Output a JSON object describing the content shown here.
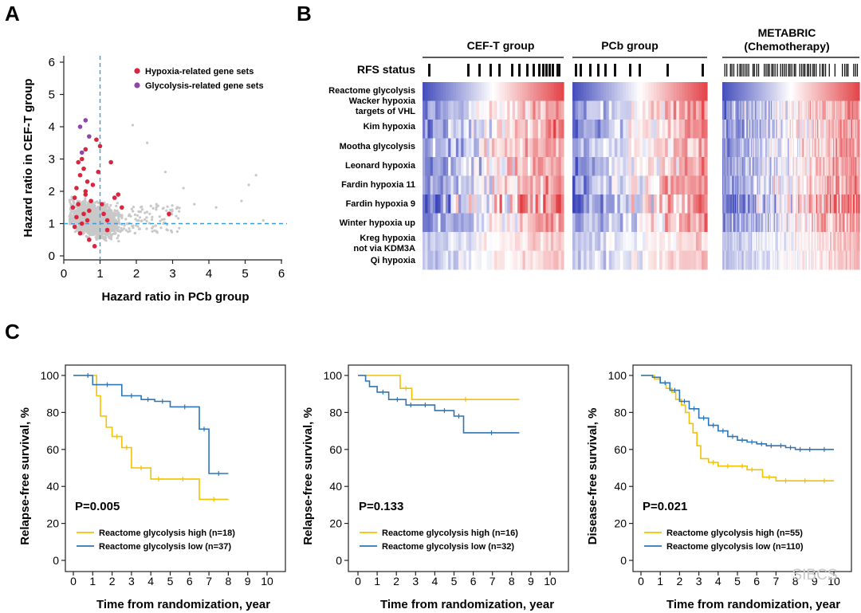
{
  "panel_letters": {
    "a": "A",
    "b": "B",
    "c": "C"
  },
  "watermark": "SIBCS",
  "colors": {
    "hypoxia": "#d7263d",
    "glycolysis": "#8e44ad",
    "grey": "#c8c8c8",
    "dash": "#3a9bd9",
    "high": "#f2c200",
    "low": "#2e75b6",
    "axis": "#222222"
  },
  "heatmap": {
    "rfs_label": "RFS status",
    "groups": [
      {
        "name": "CEF-T group",
        "name2": ""
      },
      {
        "name": "PCb group",
        "name2": ""
      },
      {
        "name": "METABRIC",
        "name2": "(Chemotherapy)"
      }
    ],
    "rows": [
      {
        "line1": "Reactome glycolysis",
        "line2": ""
      },
      {
        "line1": "Wacker hypoxia",
        "line2": "targets of VHL"
      },
      {
        "line1": "Kim hypoxia",
        "line2": ""
      },
      {
        "line1": "Mootha glycolysis",
        "line2": ""
      },
      {
        "line1": "Leonard hypoxia",
        "line2": ""
      },
      {
        "line1": "Fardin hypoxia 11",
        "line2": ""
      },
      {
        "line1": "Fardin hypoxia 9",
        "line2": ""
      },
      {
        "line1": "Winter hypoxia up",
        "line2": ""
      },
      {
        "line1": "Kreg hypoxia",
        "line2": "not via KDM3A"
      },
      {
        "line1": "Qi hypoxia",
        "line2": ""
      }
    ]
  },
  "chart_data": [
    {
      "type": "scatter",
      "title": "",
      "xlabel": "Hazard ratio in PCb group",
      "ylabel": "Hazard ratio in CEF-T group",
      "xlim": [
        0,
        6
      ],
      "ylim": [
        0,
        6
      ],
      "xticks": [
        0,
        1,
        2,
        3,
        4,
        5,
        6
      ],
      "yticks": [
        0,
        1,
        2,
        3,
        4,
        5,
        6
      ],
      "reference_lines": {
        "x": 1,
        "y": 1
      },
      "legend": [
        "Hypoxia-related gene sets",
        "Glycolysis-related gene sets"
      ],
      "background_series": "All gene sets (grey)",
      "hypoxia_points": [
        [
          0.25,
          1.5
        ],
        [
          0.3,
          1.8
        ],
        [
          0.35,
          2.1
        ],
        [
          0.4,
          1.6
        ],
        [
          0.45,
          2.5
        ],
        [
          0.5,
          3.0
        ],
        [
          0.55,
          2.7
        ],
        [
          0.6,
          1.9
        ],
        [
          0.65,
          2.3
        ],
        [
          0.7,
          1.4
        ],
        [
          0.35,
          1.2
        ],
        [
          0.4,
          2.9
        ],
        [
          0.5,
          1.0
        ],
        [
          0.55,
          1.3
        ],
        [
          0.6,
          2.0
        ],
        [
          0.75,
          1.7
        ],
        [
          0.8,
          2.2
        ],
        [
          0.9,
          3.6
        ],
        [
          1.0,
          3.4
        ],
        [
          1.05,
          1.6
        ],
        [
          1.1,
          1.3
        ],
        [
          1.2,
          1.1
        ],
        [
          1.3,
          2.9
        ],
        [
          1.4,
          1.8
        ],
        [
          1.5,
          1.9
        ],
        [
          1.6,
          1.5
        ],
        [
          1.2,
          0.8
        ],
        [
          0.3,
          0.9
        ],
        [
          0.45,
          0.7
        ],
        [
          0.7,
          0.5
        ],
        [
          0.85,
          0.3
        ],
        [
          2.9,
          1.3
        ],
        [
          0.6,
          3.3
        ],
        [
          0.65,
          1.1
        ],
        [
          0.95,
          2.6
        ]
      ],
      "glycolysis_points": [
        [
          0.45,
          4.0
        ],
        [
          0.6,
          4.2
        ],
        [
          0.7,
          3.7
        ],
        [
          0.5,
          3.2
        ]
      ]
    },
    {
      "type": "line",
      "subtype": "kaplan-meier",
      "xlabel": "Time from randomization, year",
      "ylabel": "Relapse-free survival, %",
      "xlim": [
        0,
        10
      ],
      "ylim": [
        0,
        100
      ],
      "xticks": [
        0,
        1,
        2,
        3,
        4,
        5,
        6,
        7,
        8,
        9,
        10
      ],
      "yticks": [
        0,
        20,
        40,
        60,
        80,
        100
      ],
      "pvalue": "P=0.005",
      "series": [
        {
          "name": "Reactome glycolysis high (n=18)",
          "x": [
            0,
            1,
            1.2,
            1.4,
            1.7,
            2.0,
            2.5,
            3.0,
            4.0,
            4.8,
            6.5,
            8.0
          ],
          "values": [
            100,
            100,
            89,
            78,
            72,
            67,
            61,
            50,
            44,
            44,
            33,
            33
          ]
        },
        {
          "name": "Reactome glycolysis low (n=37)",
          "x": [
            0,
            0.5,
            1.0,
            2.5,
            3.5,
            4.2,
            5.0,
            6.5,
            7.0,
            8.0
          ],
          "values": [
            100,
            100,
            95,
            89,
            87,
            86,
            83,
            71,
            47,
            47
          ]
        }
      ]
    },
    {
      "type": "line",
      "subtype": "kaplan-meier",
      "xlabel": "Time from randomization, year",
      "ylabel": "Relapse-free survival, %",
      "xlim": [
        0,
        10
      ],
      "ylim": [
        0,
        100
      ],
      "xticks": [
        0,
        1,
        2,
        3,
        4,
        5,
        6,
        7,
        8,
        9,
        10
      ],
      "yticks": [
        0,
        20,
        40,
        60,
        80,
        100
      ],
      "pvalue": "P=0.133",
      "series": [
        {
          "name": "Reactome glycolysis high (n=16)",
          "x": [
            0,
            2,
            2.2,
            2.8,
            8.4
          ],
          "values": [
            100,
            100,
            93,
            87,
            87
          ]
        },
        {
          "name": "Reactome glycolysis low (n=32)",
          "x": [
            0,
            0.4,
            0.6,
            1.0,
            1.6,
            2.5,
            3.0,
            4.0,
            5.0,
            5.5,
            8.4
          ],
          "values": [
            100,
            97,
            94,
            91,
            87,
            84,
            84,
            81,
            78,
            69,
            69
          ]
        }
      ]
    },
    {
      "type": "line",
      "subtype": "kaplan-meier",
      "xlabel": "Time from randomization, year",
      "ylabel": "Disease-free survival, %",
      "xlim": [
        0,
        10
      ],
      "ylim": [
        0,
        100
      ],
      "xticks": [
        0,
        1,
        2,
        3,
        4,
        5,
        6,
        7,
        8,
        9,
        10
      ],
      "yticks": [
        0,
        20,
        40,
        60,
        80,
        100
      ],
      "pvalue": "P=0.021",
      "series": [
        {
          "name": "Reactome glycolysis high (n=55)",
          "x": [
            0,
            0.7,
            1.0,
            1.3,
            1.6,
            1.8,
            2.1,
            2.3,
            2.5,
            2.7,
            2.9,
            3.1,
            3.5,
            4.0,
            5.0,
            5.5,
            6.0,
            6.3,
            7.0,
            8.0,
            9.0,
            10.0
          ],
          "values": [
            100,
            98,
            96,
            93,
            91,
            87,
            84,
            80,
            74,
            69,
            62,
            55,
            53,
            51,
            51,
            49,
            49,
            45,
            43,
            43,
            43,
            43
          ]
        },
        {
          "name": "Reactome glycolysis low (n=110)",
          "x": [
            0,
            0.6,
            1.0,
            1.5,
            2.0,
            2.5,
            3.0,
            3.5,
            4.0,
            4.5,
            5.0,
            5.5,
            6.0,
            6.5,
            7.0,
            7.5,
            8.0,
            8.5,
            9.0,
            10.0
          ],
          "values": [
            100,
            99,
            96,
            92,
            86,
            82,
            77,
            73,
            70,
            67,
            65,
            64,
            63,
            62,
            62,
            61,
            60,
            60,
            60,
            60
          ]
        }
      ]
    }
  ]
}
